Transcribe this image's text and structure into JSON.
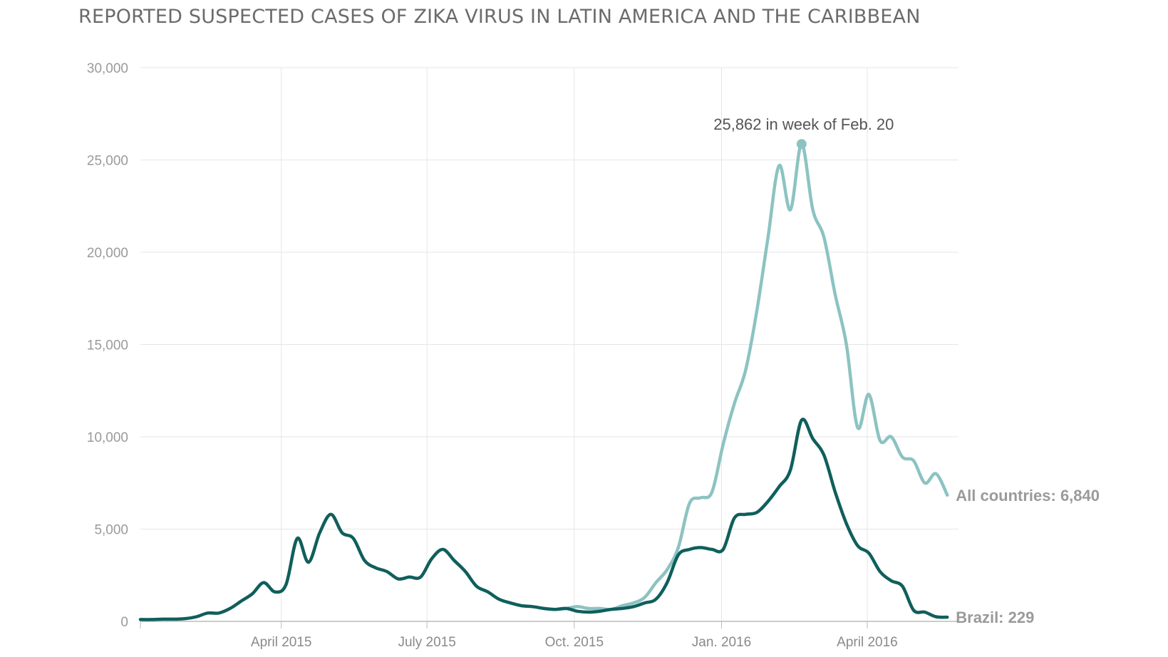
{
  "chart_data": {
    "type": "line",
    "title": "REPORTED SUSPECTED CASES OF ZIKA VIRUS IN LATIN AMERICA AND THE CARIBBEAN",
    "xlabel": "",
    "ylabel": "",
    "ylim": [
      0,
      30000
    ],
    "xlim": [
      "2015-01-03",
      "2016-05-28"
    ],
    "grid": true,
    "yticks": [
      {
        "value": 0,
        "label": "0"
      },
      {
        "value": 5000,
        "label": "5,000"
      },
      {
        "value": 10000,
        "label": "10,000"
      },
      {
        "value": 15000,
        "label": "15,000"
      },
      {
        "value": 20000,
        "label": "20,000"
      },
      {
        "value": 25000,
        "label": "25,000"
      },
      {
        "value": 30000,
        "label": "30,000"
      }
    ],
    "xticks": [
      {
        "date": "2015-04-01",
        "label": "April 2015"
      },
      {
        "date": "2015-07-01",
        "label": "July 2015"
      },
      {
        "date": "2015-10-01",
        "label": "Oct. 2015"
      },
      {
        "date": "2016-01-01",
        "label": "Jan. 2016"
      },
      {
        "date": "2016-04-01",
        "label": "April 2016"
      }
    ],
    "series": [
      {
        "name": "All countries",
        "end_label": "All countries: 6,840",
        "color": "#8cc3c2",
        "points": [
          [
            "2015-09-12",
            700
          ],
          [
            "2015-09-19",
            650
          ],
          [
            "2015-09-26",
            700
          ],
          [
            "2015-10-03",
            800
          ],
          [
            "2015-10-10",
            700
          ],
          [
            "2015-10-17",
            700
          ],
          [
            "2015-10-24",
            650
          ],
          [
            "2015-10-31",
            850
          ],
          [
            "2015-11-07",
            1000
          ],
          [
            "2015-11-14",
            1300
          ],
          [
            "2015-11-21",
            2100
          ],
          [
            "2015-11-28",
            2800
          ],
          [
            "2015-12-05",
            4000
          ],
          [
            "2015-12-12",
            6400
          ],
          [
            "2015-12-19",
            6700
          ],
          [
            "2015-12-26",
            7000
          ],
          [
            "2016-01-02",
            9600
          ],
          [
            "2016-01-09",
            11800
          ],
          [
            "2016-01-16",
            13600
          ],
          [
            "2016-01-23",
            16800
          ],
          [
            "2016-01-30",
            20800
          ],
          [
            "2016-02-06",
            24700
          ],
          [
            "2016-02-13",
            22300
          ],
          [
            "2016-02-20",
            25862
          ],
          [
            "2016-02-27",
            22300
          ],
          [
            "2016-03-05",
            20800
          ],
          [
            "2016-03-12",
            17700
          ],
          [
            "2016-03-19",
            15000
          ],
          [
            "2016-03-26",
            10500
          ],
          [
            "2016-04-02",
            12300
          ],
          [
            "2016-04-09",
            9800
          ],
          [
            "2016-04-16",
            10000
          ],
          [
            "2016-04-23",
            8900
          ],
          [
            "2016-04-30",
            8700
          ],
          [
            "2016-05-07",
            7500
          ],
          [
            "2016-05-14",
            8000
          ],
          [
            "2016-05-21",
            6840
          ]
        ]
      },
      {
        "name": "Brazil",
        "end_label": "Brazil: 229",
        "color": "#0f5f5c",
        "points": [
          [
            "2015-01-03",
            100
          ],
          [
            "2015-01-10",
            100
          ],
          [
            "2015-01-17",
            120
          ],
          [
            "2015-01-24",
            120
          ],
          [
            "2015-01-31",
            150
          ],
          [
            "2015-02-07",
            250
          ],
          [
            "2015-02-14",
            450
          ],
          [
            "2015-02-21",
            450
          ],
          [
            "2015-02-28",
            700
          ],
          [
            "2015-03-07",
            1100
          ],
          [
            "2015-03-14",
            1500
          ],
          [
            "2015-03-21",
            2100
          ],
          [
            "2015-03-28",
            1600
          ],
          [
            "2015-04-04",
            2000
          ],
          [
            "2015-04-11",
            4500
          ],
          [
            "2015-04-18",
            3200
          ],
          [
            "2015-04-25",
            4800
          ],
          [
            "2015-05-02",
            5800
          ],
          [
            "2015-05-09",
            4800
          ],
          [
            "2015-05-16",
            4500
          ],
          [
            "2015-05-23",
            3300
          ],
          [
            "2015-05-30",
            2900
          ],
          [
            "2015-06-06",
            2700
          ],
          [
            "2015-06-13",
            2300
          ],
          [
            "2015-06-20",
            2400
          ],
          [
            "2015-06-27",
            2400
          ],
          [
            "2015-07-04",
            3400
          ],
          [
            "2015-07-11",
            3900
          ],
          [
            "2015-07-18",
            3300
          ],
          [
            "2015-07-25",
            2700
          ],
          [
            "2015-08-01",
            1900
          ],
          [
            "2015-08-08",
            1600
          ],
          [
            "2015-08-15",
            1200
          ],
          [
            "2015-08-22",
            1000
          ],
          [
            "2015-08-29",
            850
          ],
          [
            "2015-09-05",
            800
          ],
          [
            "2015-09-12",
            700
          ],
          [
            "2015-09-19",
            650
          ],
          [
            "2015-09-26",
            700
          ],
          [
            "2015-10-03",
            550
          ],
          [
            "2015-10-10",
            500
          ],
          [
            "2015-10-17",
            550
          ],
          [
            "2015-10-24",
            650
          ],
          [
            "2015-10-31",
            700
          ],
          [
            "2015-11-07",
            800
          ],
          [
            "2015-11-14",
            1000
          ],
          [
            "2015-11-21",
            1200
          ],
          [
            "2015-11-28",
            2100
          ],
          [
            "2015-12-05",
            3600
          ],
          [
            "2015-12-12",
            3900
          ],
          [
            "2015-12-19",
            4000
          ],
          [
            "2015-12-26",
            3900
          ],
          [
            "2016-01-02",
            3900
          ],
          [
            "2016-01-09",
            5600
          ],
          [
            "2016-01-16",
            5800
          ],
          [
            "2016-01-23",
            5900
          ],
          [
            "2016-01-30",
            6500
          ],
          [
            "2016-02-06",
            7300
          ],
          [
            "2016-02-13",
            8200
          ],
          [
            "2016-02-20",
            10900
          ],
          [
            "2016-02-27",
            9900
          ],
          [
            "2016-03-05",
            9000
          ],
          [
            "2016-03-12",
            7000
          ],
          [
            "2016-03-19",
            5300
          ],
          [
            "2016-03-26",
            4100
          ],
          [
            "2016-04-02",
            3700
          ],
          [
            "2016-04-09",
            2700
          ],
          [
            "2016-04-16",
            2200
          ],
          [
            "2016-04-23",
            1900
          ],
          [
            "2016-04-30",
            600
          ],
          [
            "2016-05-07",
            500
          ],
          [
            "2016-05-14",
            250
          ],
          [
            "2016-05-21",
            229
          ]
        ]
      }
    ],
    "annotations": [
      {
        "text": "25,862 in week of Feb. 20",
        "series": "All countries",
        "date": "2016-02-20",
        "value": 25862
      }
    ]
  }
}
